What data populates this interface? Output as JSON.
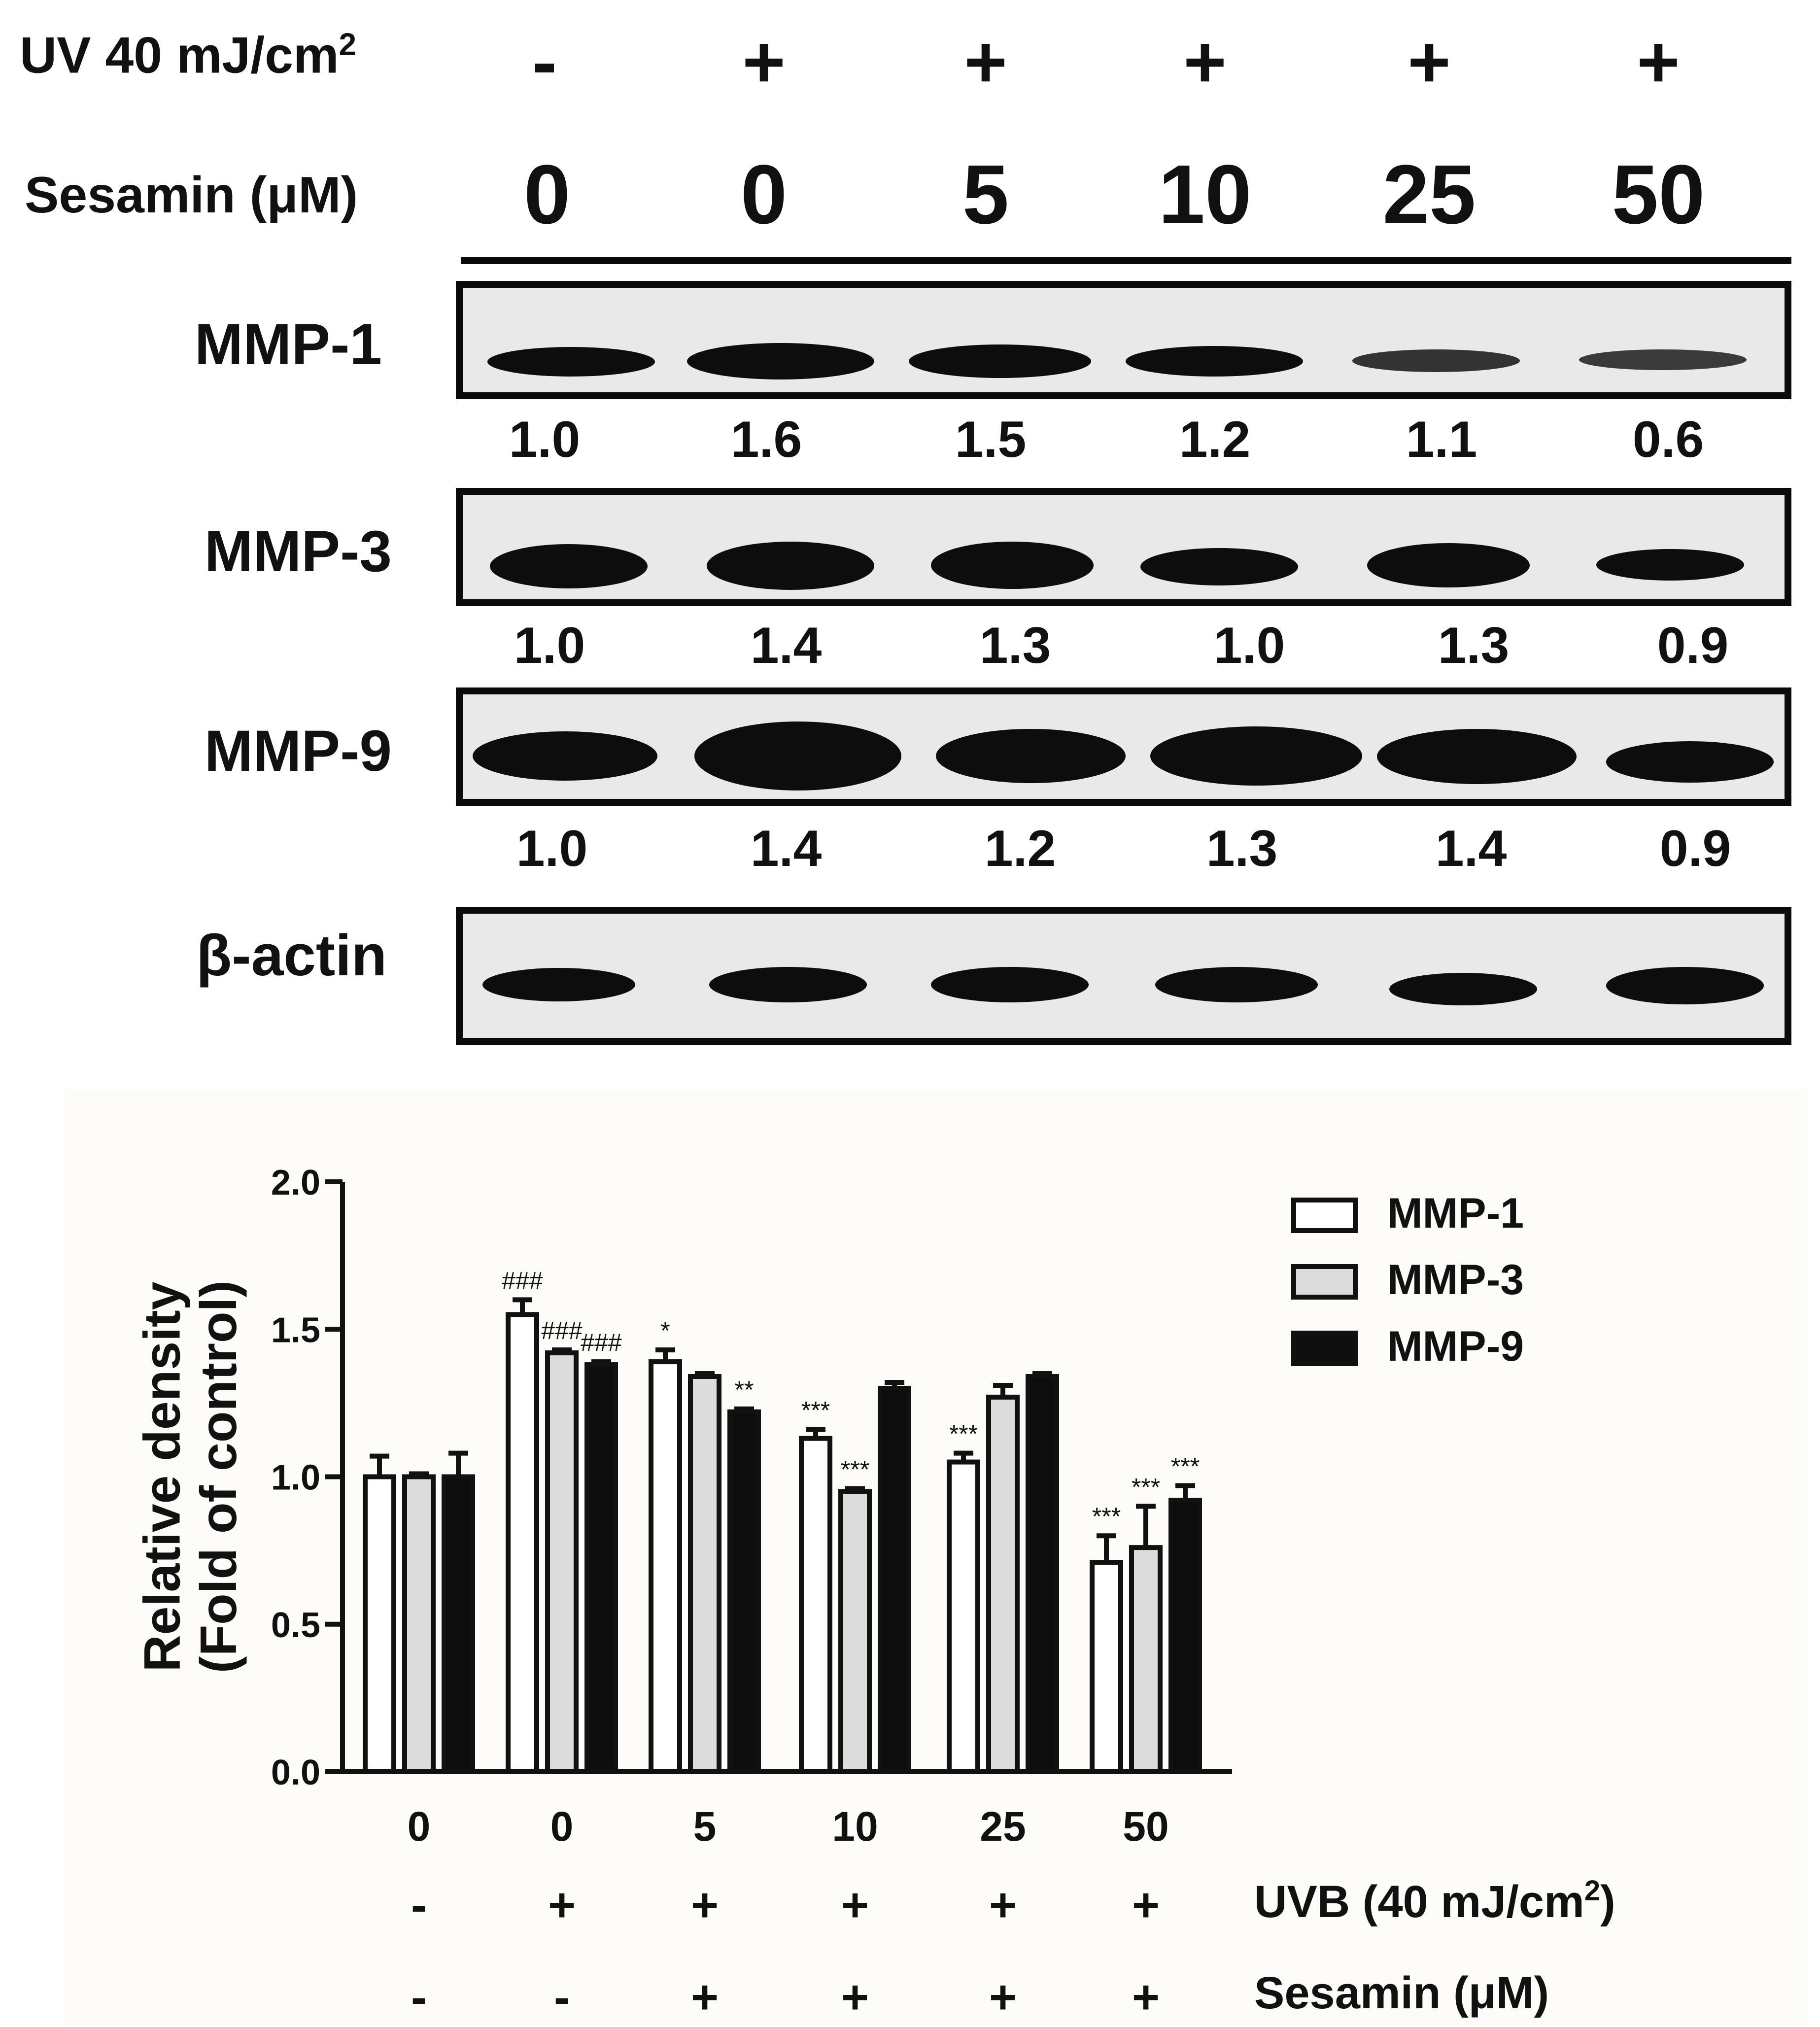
{
  "header": {
    "uv_label": "UV 40 mJ/cm",
    "uv_sup": "2",
    "uv_signs": [
      "-",
      "+",
      "+",
      "+",
      "+",
      "+"
    ],
    "sesamin_label": "Sesamin (μM)",
    "sesamin_values": [
      "0",
      "0",
      "5",
      "10",
      "25",
      "50"
    ]
  },
  "blots": [
    {
      "label": "MMP-1",
      "densities": [
        "1.0",
        "1.6",
        "1.5",
        "1.2",
        "1.1",
        "0.6"
      ]
    },
    {
      "label": "MMP-3",
      "densities": [
        "1.0",
        "1.4",
        "1.3",
        "1.0",
        "1.3",
        "0.9"
      ]
    },
    {
      "label": "MMP-9",
      "densities": [
        "1.0",
        "1.4",
        "1.2",
        "1.3",
        "1.4",
        "0.9"
      ]
    },
    {
      "label": "β-actin",
      "densities": []
    }
  ],
  "chart_data": {
    "type": "bar",
    "ylabel_line1": "Relative density",
    "ylabel_line2": "(Fold of control)",
    "ylim": [
      0,
      2.0
    ],
    "yticks": [
      "0.0",
      "0.5",
      "1.0",
      "1.5",
      "2.0"
    ],
    "categories": [
      "0",
      "0",
      "5",
      "10",
      "25",
      "50"
    ],
    "uvb_label": "UVB (40 mJ/cm",
    "uvb_sup": "2",
    "uvb_close": ")",
    "uvb_signs": [
      "-",
      "+",
      "+",
      "+",
      "+",
      "+"
    ],
    "sesamin_label": "Sesamin (μM)",
    "sesamin_signs": [
      "-",
      "-",
      "+",
      "+",
      "+",
      "+"
    ],
    "legend_position": "top-right",
    "series": [
      {
        "name": "MMP-1",
        "fill": "#ffffff",
        "values": [
          1.0,
          1.55,
          1.39,
          1.13,
          1.05,
          0.71
        ],
        "errors": [
          0.07,
          0.05,
          0.04,
          0.03,
          0.03,
          0.09
        ],
        "annotations": [
          "",
          "###",
          "*",
          "***",
          "***",
          "***"
        ]
      },
      {
        "name": "MMP-3",
        "fill": "#dcdcdc",
        "values": [
          1.0,
          1.42,
          1.34,
          0.95,
          1.27,
          0.76
        ],
        "errors": [
          0.01,
          0.01,
          0.01,
          0.01,
          0.04,
          0.14
        ],
        "annotations": [
          "",
          "###",
          "",
          "***",
          "",
          "***"
        ]
      },
      {
        "name": "MMP-9",
        "fill": "#0d0d0d",
        "values": [
          1.0,
          1.38,
          1.22,
          1.3,
          1.34,
          0.92
        ],
        "errors": [
          0.08,
          0.01,
          0.01,
          0.02,
          0.01,
          0.05
        ],
        "annotations": [
          "",
          "###",
          "**",
          "",
          "",
          "***"
        ]
      }
    ]
  }
}
